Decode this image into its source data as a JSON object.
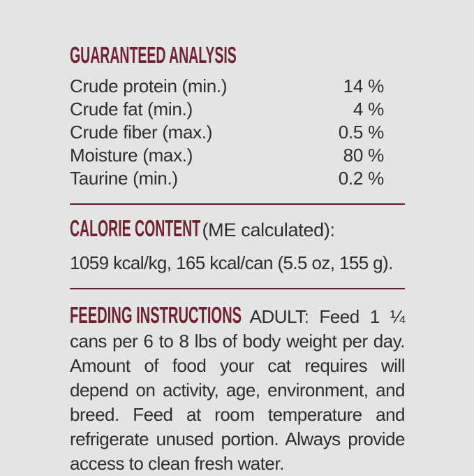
{
  "page": {
    "background_color": "#e5e4e5",
    "accent_color": "#6f2233",
    "text_color": "#2e2d2f",
    "divider_color": "#5c1f2b"
  },
  "guaranteed_analysis": {
    "title": "GUARANTEED ANALYSIS",
    "rows": [
      {
        "label": "Crude protein (min.)",
        "value": "14",
        "unit": "%"
      },
      {
        "label": "Crude fat (min.)",
        "value": "4",
        "unit": "%"
      },
      {
        "label": "Crude fiber (max.)",
        "value": "0.5",
        "unit": "%"
      },
      {
        "label": "Moisture (max.)",
        "value": "80",
        "unit": "%"
      },
      {
        "label": "Taurine (min.)",
        "value": "0.2",
        "unit": "%"
      }
    ]
  },
  "calorie_content": {
    "title": "CALORIE CONTENT",
    "subtitle": "(ME calculated):",
    "detail": "1059 kcal/kg, 165 kcal/can (5.5 oz, 155 g)."
  },
  "feeding_instructions": {
    "title": "FEEDING INSTRUCTIONS",
    "body": "ADULT: Feed 1 ¼ cans per 6 to 8 lbs of body weight per day. Amount of food your cat requires will depend on activity, age, environment, and breed. Feed at room temperature and refrigerate unused portion. Always provide access to clean fresh water."
  }
}
